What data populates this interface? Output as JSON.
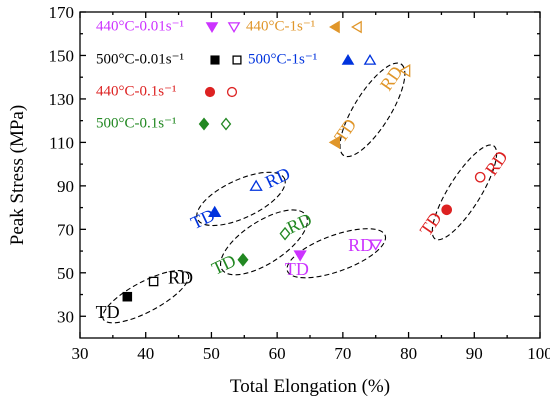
{
  "chart_data": {
    "type": "scatter",
    "title": "",
    "xlabel": "Total Elongation (%)",
    "ylabel": "Peak Stress (MPa)",
    "xlim": [
      30,
      100
    ],
    "ylim": [
      20,
      170
    ],
    "xticks": [
      30,
      40,
      50,
      60,
      70,
      80,
      90,
      100
    ],
    "yticks": [
      30,
      50,
      70,
      90,
      110,
      130,
      150,
      170
    ],
    "grid": false,
    "legend_placement": "top-left",
    "series": [
      {
        "name": "440°C-0.01s⁻¹",
        "color": "#cc33ff",
        "marker": "triangle-down",
        "points": [
          {
            "x": 63.5,
            "y": 58,
            "filled": true
          },
          {
            "x": 75.0,
            "y": 63,
            "filled": false
          }
        ]
      },
      {
        "name": "440°C-1s⁻¹",
        "color": "#e0962a",
        "marker": "triangle-left",
        "points": [
          {
            "x": 68.8,
            "y": 110,
            "filled": true
          },
          {
            "x": 79.5,
            "y": 143,
            "filled": false
          }
        ]
      },
      {
        "name": "500°C-0.01s⁻¹",
        "color": "#000000",
        "marker": "square",
        "points": [
          {
            "x": 37.2,
            "y": 39,
            "filled": true
          },
          {
            "x": 41.2,
            "y": 46,
            "filled": false
          }
        ]
      },
      {
        "name": "500°C-1s⁻¹",
        "color": "#0033dd",
        "marker": "triangle-up",
        "points": [
          {
            "x": 50.5,
            "y": 78,
            "filled": true
          },
          {
            "x": 56.8,
            "y": 90,
            "filled": false
          }
        ]
      },
      {
        "name": "440°C-0.1s⁻¹",
        "color": "#dd2222",
        "marker": "circle",
        "points": [
          {
            "x": 85.8,
            "y": 79,
            "filled": true
          },
          {
            "x": 90.9,
            "y": 94,
            "filled": false
          }
        ]
      },
      {
        "name": "500°C-0.1s⁻¹",
        "color": "#228822",
        "marker": "diamond",
        "points": [
          {
            "x": 54.8,
            "y": 56,
            "filled": true
          },
          {
            "x": 61.2,
            "y": 68,
            "filled": false
          }
        ]
      }
    ],
    "annotations": [
      {
        "text": "TD",
        "x": 34.2,
        "y": 31,
        "color": "#000000"
      },
      {
        "text": "RD",
        "x": 45.3,
        "y": 47,
        "color": "#000000"
      },
      {
        "text": "TD",
        "x": 48.8,
        "y": 74,
        "color": "#0033dd",
        "rotate": -25
      },
      {
        "text": "RD",
        "x": 60.2,
        "y": 93,
        "color": "#0033dd",
        "rotate": -25
      },
      {
        "text": "TD",
        "x": 52.0,
        "y": 53,
        "color": "#228822",
        "rotate": -25
      },
      {
        "text": "RD",
        "x": 63.5,
        "y": 72,
        "color": "#228822",
        "rotate": -25
      },
      {
        "text": "TD",
        "x": 63.0,
        "y": 51,
        "color": "#cc33ff"
      },
      {
        "text": "RD",
        "x": 72.7,
        "y": 62,
        "color": "#cc33ff"
      },
      {
        "text": "TD",
        "x": 70.6,
        "y": 115,
        "color": "#e0962a",
        "rotate": -55
      },
      {
        "text": "RD",
        "x": 77.6,
        "y": 139,
        "color": "#e0962a",
        "rotate": -55
      },
      {
        "text": "TD",
        "x": 83.6,
        "y": 72,
        "color": "#dd2222",
        "rotate": -55
      },
      {
        "text": "RD",
        "x": 93.6,
        "y": 100,
        "color": "#dd2222",
        "rotate": -55
      }
    ],
    "groups": [
      {
        "cx": 40.0,
        "cy": 39,
        "rx": 48,
        "ry": 15,
        "rotate": -28
      },
      {
        "cx": 54.5,
        "cy": 84,
        "rx": 48,
        "ry": 19,
        "rotate": -25
      },
      {
        "cx": 58.0,
        "cy": 64,
        "rx": 50,
        "ry": 21,
        "rotate": -33
      },
      {
        "cx": 69.0,
        "cy": 59,
        "rx": 52,
        "ry": 18,
        "rotate": -20
      },
      {
        "cx": 74.5,
        "cy": 125,
        "rx": 54,
        "ry": 18,
        "rotate": -58
      },
      {
        "cx": 88.5,
        "cy": 87,
        "rx": 55,
        "ry": 16,
        "rotate": -58
      }
    ]
  }
}
